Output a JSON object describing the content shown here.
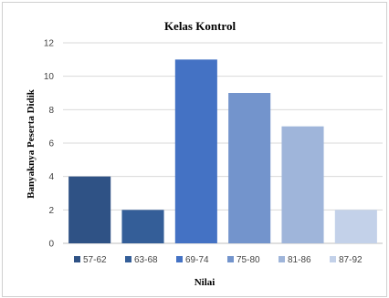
{
  "chart_data": {
    "type": "bar",
    "title": "Kelas Kontrol",
    "xlabel": "Nilai",
    "ylabel": "Banyaknya Peserta Didik",
    "categories": [
      "57-62",
      "63-68",
      "69-74",
      "75-80",
      "81-86",
      "87-92"
    ],
    "values": [
      4,
      2,
      11,
      9,
      7,
      2
    ],
    "colors": [
      "#2f5285",
      "#345e98",
      "#4472c4",
      "#7394cc",
      "#9fb5da",
      "#c3d1e9"
    ],
    "ylim": [
      0,
      12
    ],
    "yticks": [
      0,
      2,
      4,
      6,
      8,
      10,
      12
    ],
    "grid": true,
    "legend": "bottom"
  }
}
